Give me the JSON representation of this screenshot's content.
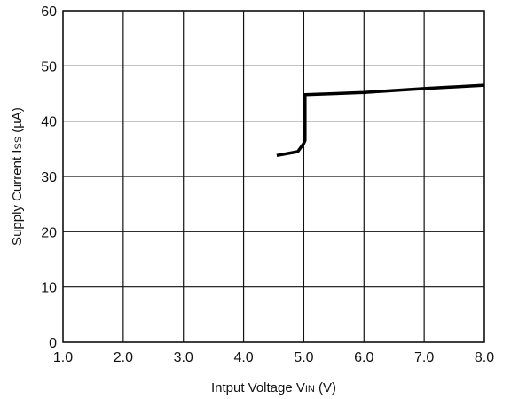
{
  "chart_data": {
    "type": "line",
    "title": "",
    "xlabel": "Intput Voltage VIN (V)",
    "xlabel_parts": {
      "main": "Intput Voltage V",
      "sub": "IN",
      "tail": " (V)"
    },
    "ylabel": "Supply Current  Iss (µA)",
    "ylabel_parts": {
      "main": "Supply Current  I",
      "sub": "SS",
      "tail": " (µA)"
    },
    "xlim": [
      1.0,
      8.0
    ],
    "ylim": [
      0,
      60
    ],
    "x_ticks": [
      1.0,
      2.0,
      3.0,
      4.0,
      5.0,
      6.0,
      7.0,
      8.0
    ],
    "x_tick_labels": [
      "1.0",
      "2.0",
      "3.0",
      "4.0",
      "5.0",
      "6.0",
      "7.0",
      "8.0"
    ],
    "y_ticks": [
      0,
      10,
      20,
      30,
      40,
      50,
      60
    ],
    "y_tick_labels": [
      "0",
      "10",
      "20",
      "30",
      "40",
      "50",
      "60"
    ],
    "grid": true,
    "series": [
      {
        "x": [
          4.55,
          4.9,
          5.0,
          5.02,
          5.02,
          6.0,
          7.0,
          8.0
        ],
        "y": [
          33.8,
          34.5,
          36.0,
          36.5,
          44.8,
          45.2,
          45.9,
          46.5
        ],
        "color": "#000000"
      }
    ]
  }
}
